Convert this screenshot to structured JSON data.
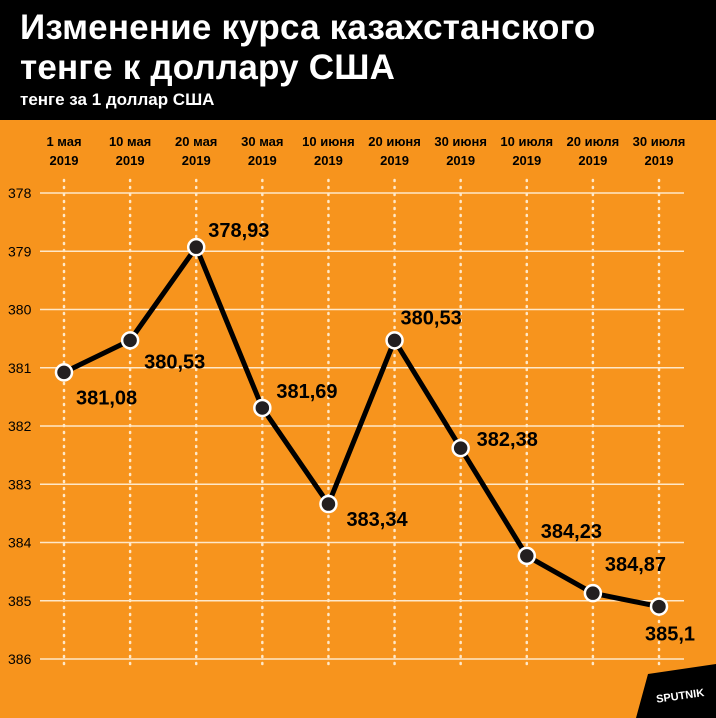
{
  "header": {
    "title_line1": "Изменение курса казахстанского",
    "title_line2": "тенге к доллару США",
    "subtitle": "тенге за 1 доллар США"
  },
  "logo": {
    "text": "SPUTNIK"
  },
  "colors": {
    "background": "#F7941D",
    "header": "#000000",
    "line": "#000000",
    "marker_fill": "#231F20"
  },
  "chart_data": {
    "type": "line",
    "title": "Изменение курса казахстанского тенге к доллару США",
    "subtitle": "тенге за 1 доллар США",
    "xlabel": "",
    "ylabel": "",
    "categories": [
      [
        "1 мая",
        "2019"
      ],
      [
        "10 мая",
        "2019"
      ],
      [
        "20 мая",
        "2019"
      ],
      [
        "30 мая",
        "2019"
      ],
      [
        "10 июня",
        "2019"
      ],
      [
        "20 июня",
        "2019"
      ],
      [
        "30 июня",
        "2019"
      ],
      [
        "10 июля",
        "2019"
      ],
      [
        "20 июля",
        "2019"
      ],
      [
        "30 июля",
        "2019"
      ]
    ],
    "series": [
      {
        "values": [
          381.08,
          380.53,
          378.93,
          381.69,
          383.34,
          380.53,
          382.38,
          384.23,
          384.87,
          385.1
        ],
        "labels": [
          "381,08",
          "380,53",
          "378,93",
          "381,69",
          "383,34",
          "380,53",
          "382,38",
          "384,23",
          "384,87",
          "385,1"
        ]
      }
    ],
    "y_ticks": [
      378,
      379,
      380,
      381,
      382,
      383,
      384,
      385,
      386
    ],
    "ylim": [
      378,
      386
    ],
    "y_inverted": true,
    "grid": {
      "horizontal": true,
      "vertical": "dotted"
    },
    "x_axis_position": "top"
  }
}
